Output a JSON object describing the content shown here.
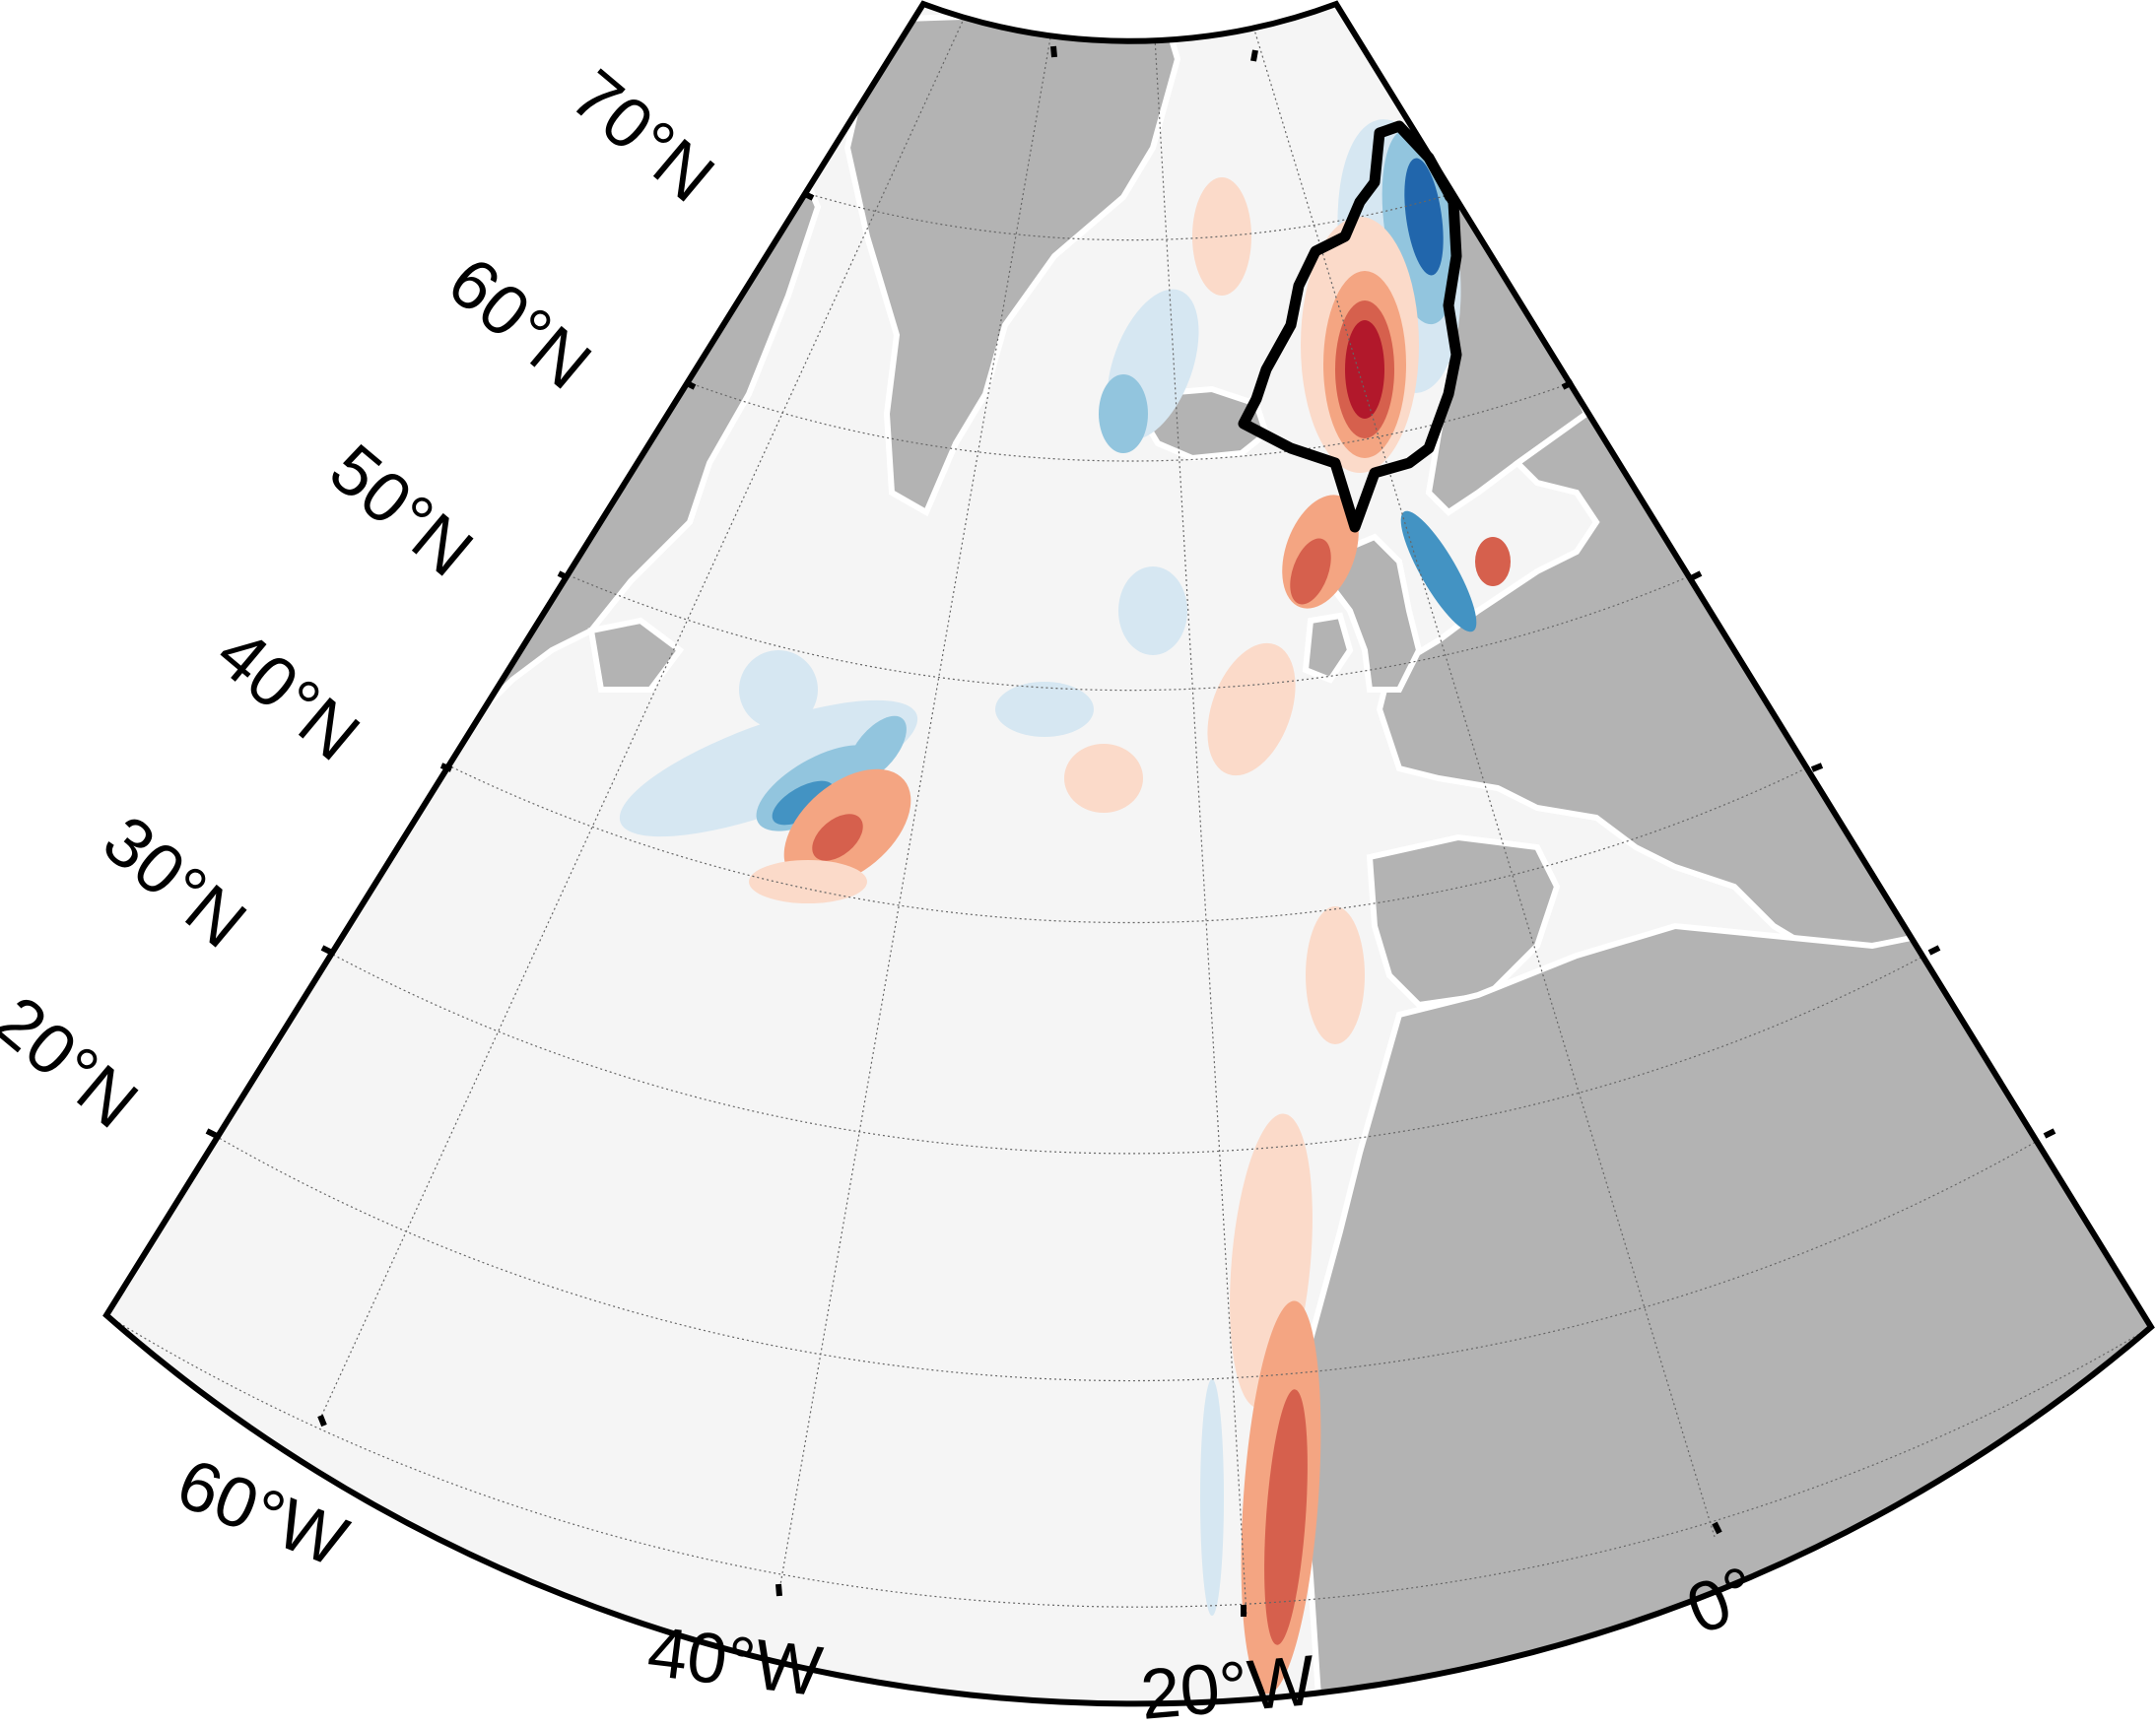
{
  "map": {
    "projection": "conic",
    "lat_labels": [
      "70°N",
      "60°N",
      "50°N",
      "40°N",
      "30°N",
      "20°N"
    ],
    "lon_labels": [
      "60°W",
      "40°W",
      "20°W",
      "0°"
    ],
    "colors": {
      "land": "#b3b3b3",
      "ocean_neutral": "#f5f5f5",
      "light_blue": "#d6e7f2",
      "mid_blue": "#92c5de",
      "blue": "#4393c3",
      "dark_blue": "#2166ac",
      "light_red": "#fbdac9",
      "mid_red": "#f4a582",
      "red": "#d6604d",
      "dark_red": "#b2182b",
      "frame": "#000000",
      "region_outline": "#000000"
    },
    "highlighted_region": "region-outline"
  }
}
